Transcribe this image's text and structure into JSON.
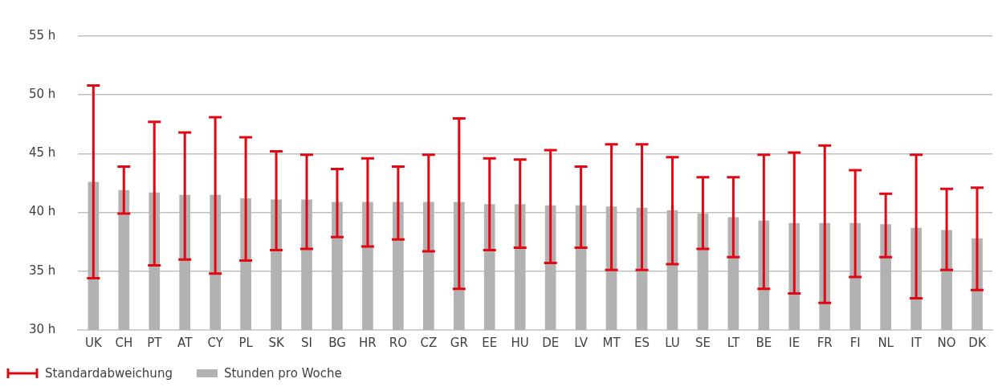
{
  "chart_data": {
    "type": "bar",
    "categories": [
      "UK",
      "CH",
      "PT",
      "AT",
      "CY",
      "PL",
      "SK",
      "SI",
      "BG",
      "HR",
      "RO",
      "CZ",
      "GR",
      "EE",
      "HU",
      "DE",
      "LV",
      "MT",
      "ES",
      "LU",
      "SE",
      "LT",
      "BE",
      "IE",
      "FR",
      "FI",
      "NL",
      "IT",
      "NO",
      "DK"
    ],
    "series": [
      {
        "name": "Stunden pro Woche",
        "color": "#b2b2b2",
        "values": [
          42.6,
          41.9,
          41.7,
          41.5,
          41.5,
          41.2,
          41.1,
          41.1,
          40.9,
          40.9,
          40.9,
          40.9,
          40.9,
          40.7,
          40.7,
          40.6,
          40.6,
          40.5,
          40.4,
          40.2,
          39.9,
          39.6,
          39.3,
          39.1,
          39.1,
          39.1,
          39.0,
          38.7,
          38.5,
          37.8
        ],
        "errors": [
          [
            34.4,
            50.8
          ],
          [
            39.9,
            43.9
          ],
          [
            35.5,
            47.7
          ],
          [
            36.0,
            46.8
          ],
          [
            34.8,
            48.1
          ],
          [
            35.9,
            46.4
          ],
          [
            36.8,
            45.2
          ],
          [
            36.9,
            44.9
          ],
          [
            37.9,
            43.7
          ],
          [
            37.1,
            44.6
          ],
          [
            37.7,
            43.9
          ],
          [
            36.7,
            44.9
          ],
          [
            33.5,
            48.0
          ],
          [
            36.8,
            44.6
          ],
          [
            37.0,
            44.5
          ],
          [
            35.7,
            45.3
          ],
          [
            37.0,
            43.9
          ],
          [
            35.1,
            45.8
          ],
          [
            35.1,
            45.8
          ],
          [
            35.6,
            44.7
          ],
          [
            36.9,
            43.0
          ],
          [
            36.2,
            43.0
          ],
          [
            33.5,
            44.9
          ],
          [
            33.1,
            45.1
          ],
          [
            32.3,
            45.7
          ],
          [
            34.5,
            43.6
          ],
          [
            36.2,
            41.6
          ],
          [
            32.7,
            44.9
          ],
          [
            35.1,
            42.0
          ],
          [
            33.4,
            42.1
          ]
        ]
      }
    ],
    "annotations": [
      "Standardabweichung"
    ],
    "ylim": [
      30,
      55
    ],
    "yticks": [
      {
        "value": 30,
        "label": "30 h"
      },
      {
        "value": 35,
        "label": "35 h"
      },
      {
        "value": 40,
        "label": "40 h"
      },
      {
        "value": 45,
        "label": "45 h"
      },
      {
        "value": 50,
        "label": "50 h"
      },
      {
        "value": 55,
        "label": "55 h"
      }
    ],
    "grid": "y",
    "legend": "bottom"
  }
}
